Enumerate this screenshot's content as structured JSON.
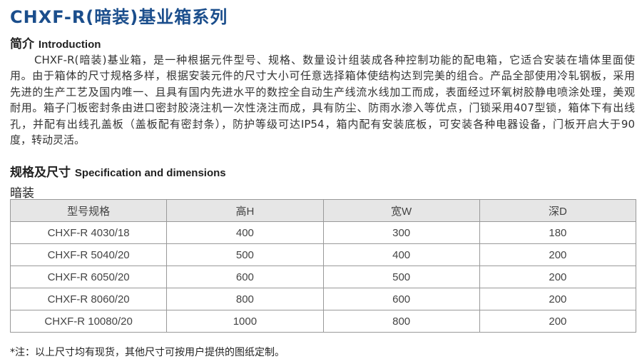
{
  "title": "CHXF-R(暗装)基业箱系列",
  "intro": {
    "heading_cn": "简介",
    "heading_en": "Introduction",
    "lines": [
      "CHXF-R(暗装)基业箱，是一种根据元件型号、规格、数量设计组装成各种控制功能的配电箱，它适合安装在墙体里面使",
      "用。由于箱体的尺寸规格多样，根据安装元件的尺寸大小可任意选择箱体使结构达到完美的组合。产品全部使用冷轧钢板，采用",
      "先进的生产工艺及国内唯一、且具有国内先进水平的数控全自动生产线流水线加工而成，表面经过环氧树胶静电喷涂处理，美观",
      "耐用。箱子门板密封条由进口密封胶浇注机一次性浇注而成，具有防尘、防雨水渗入等优点，门锁采用407型锁，箱体下有出线",
      "孔，并配有出线孔盖板（盖板配有密封条），防护等级可达IP54，箱内配有安装底板，可安装各种电器设备，门板开启大于90",
      "度，转动灵活。"
    ]
  },
  "spec": {
    "heading_cn": "规格及尺寸",
    "heading_en": "Specification and dimensions",
    "subheading": "暗装",
    "headers": [
      "型号规格",
      "高H",
      "宽W",
      "深D"
    ],
    "rows": [
      [
        "CHXF-R 4030/18",
        "400",
        "300",
        "180"
      ],
      [
        "CHXF-R 5040/20",
        "500",
        "400",
        "200"
      ],
      [
        "CHXF-R 6050/20",
        "600",
        "500",
        "200"
      ],
      [
        "CHXF-R 8060/20",
        "800",
        "600",
        "200"
      ],
      [
        "CHXF-R 10080/20",
        "1000",
        "800",
        "200"
      ]
    ]
  },
  "note": "*注：以上尺寸均有现货，其他尺寸可按用户提供的图纸定制。"
}
